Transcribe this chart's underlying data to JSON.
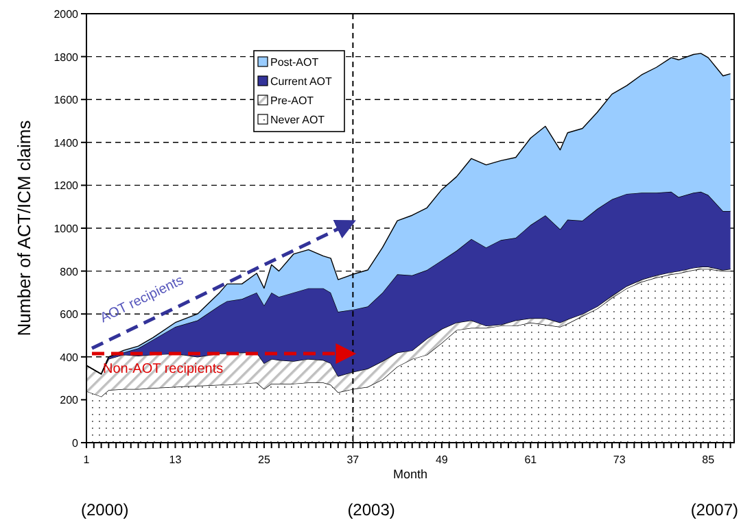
{
  "chart_data": {
    "type": "area",
    "stacked": true,
    "ylabel": "Number of ACT/ICM claims",
    "xlabel": "Month",
    "x": [
      1,
      3,
      4,
      6,
      8,
      10,
      13,
      16,
      19,
      20,
      22,
      24,
      25,
      26,
      27,
      29,
      31,
      33,
      34,
      35,
      37,
      39,
      41,
      43,
      45,
      47,
      49,
      51,
      53,
      55,
      57,
      59,
      61,
      63,
      65,
      66,
      68,
      70,
      72,
      74,
      76,
      78,
      80,
      81,
      83,
      84,
      85,
      87,
      88
    ],
    "series": [
      {
        "name": "Never AOT",
        "color": "#ffffff",
        "values": [
          240,
          215,
          245,
          250,
          250,
          255,
          260,
          265,
          270,
          270,
          275,
          280,
          250,
          275,
          275,
          275,
          280,
          280,
          270,
          235,
          250,
          260,
          295,
          355,
          390,
          410,
          465,
          525,
          535,
          535,
          545,
          545,
          560,
          550,
          540,
          555,
          590,
          625,
          675,
          720,
          750,
          770,
          785,
          790,
          805,
          810,
          810,
          800,
          800
        ]
      },
      {
        "name": "Pre-AOT",
        "color": "#c0c0c0",
        "values": [
          120,
          105,
          145,
          160,
          155,
          155,
          155,
          135,
          145,
          145,
          145,
          140,
          120,
          115,
          110,
          105,
          110,
          105,
          100,
          75,
          80,
          85,
          85,
          65,
          40,
          75,
          65,
          35,
          35,
          10,
          5,
          25,
          20,
          30,
          20,
          20,
          10,
          10,
          10,
          10,
          10,
          10,
          10,
          10,
          10,
          10,
          10,
          5,
          10
        ]
      },
      {
        "name": "Current AOT",
        "color": "#333399",
        "values": [
          0,
          0,
          10,
          10,
          35,
          70,
          125,
          170,
          225,
          245,
          250,
          280,
          270,
          310,
          295,
          320,
          330,
          335,
          330,
          300,
          290,
          290,
          320,
          365,
          350,
          320,
          320,
          335,
          380,
          365,
          395,
          385,
          435,
          480,
          435,
          465,
          435,
          455,
          450,
          430,
          405,
          385,
          375,
          345,
          350,
          350,
          335,
          275,
          270
        ]
      },
      {
        "name": "Post-AOT",
        "color": "#99ccff",
        "values": [
          0,
          0,
          0,
          10,
          10,
          10,
          20,
          30,
          60,
          80,
          70,
          90,
          80,
          130,
          120,
          180,
          180,
          150,
          160,
          150,
          165,
          170,
          210,
          250,
          280,
          290,
          330,
          345,
          375,
          385,
          370,
          375,
          405,
          415,
          370,
          405,
          430,
          450,
          490,
          505,
          550,
          585,
          625,
          640,
          645,
          645,
          640,
          630,
          640
        ]
      }
    ],
    "xlim": [
      1,
      88.5
    ],
    "xticks": [
      1,
      {
        "value": 2,
        "label": null
      },
      {
        "value": 3,
        "label": null
      },
      {
        "value": 4,
        "label": null
      },
      {
        "value": 5,
        "label": null
      },
      {
        "value": 6,
        "label": null
      },
      {
        "value": 7,
        "label": null
      },
      {
        "value": 8,
        "label": null
      },
      {
        "value": 9,
        "label": null
      },
      {
        "value": 10,
        "label": null
      },
      {
        "value": 11,
        "label": null
      },
      {
        "value": 12,
        "label": null
      },
      13,
      {
        "value": 14,
        "label": null
      },
      {
        "value": 15,
        "label": null
      },
      {
        "value": 16,
        "label": null
      },
      {
        "value": 17,
        "label": null
      },
      {
        "value": 18,
        "label": null
      },
      {
        "value": 19,
        "label": null
      },
      {
        "value": 20,
        "label": null
      },
      {
        "value": 21,
        "label": null
      },
      {
        "value": 22,
        "label": null
      },
      {
        "value": 23,
        "label": null
      },
      {
        "value": 24,
        "label": null
      },
      25,
      {
        "value": 26,
        "label": null
      },
      {
        "value": 27,
        "label": null
      },
      {
        "value": 28,
        "label": null
      },
      {
        "value": 29,
        "label": null
      },
      {
        "value": 30,
        "label": null
      },
      {
        "value": 31,
        "label": null
      },
      {
        "value": 32,
        "label": null
      },
      {
        "value": 33,
        "label": null
      },
      {
        "value": 34,
        "label": null
      },
      {
        "value": 35,
        "label": null
      },
      {
        "value": 36,
        "label": null
      },
      37,
      {
        "value": 38,
        "label": null
      },
      {
        "value": 39,
        "label": null
      },
      {
        "value": 40,
        "label": null
      },
      {
        "value": 41,
        "label": null
      },
      {
        "value": 42,
        "label": null
      },
      {
        "value": 43,
        "label": null
      },
      {
        "value": 44,
        "label": null
      },
      {
        "value": 45,
        "label": null
      },
      {
        "value": 46,
        "label": null
      },
      {
        "value": 47,
        "label": null
      },
      {
        "value": 48,
        "label": null
      },
      49,
      {
        "value": 50,
        "label": null
      },
      {
        "value": 51,
        "label": null
      },
      {
        "value": 52,
        "label": null
      },
      {
        "value": 53,
        "label": null
      },
      {
        "value": 54,
        "label": null
      },
      {
        "value": 55,
        "label": null
      },
      {
        "value": 56,
        "label": null
      },
      {
        "value": 57,
        "label": null
      },
      {
        "value": 58,
        "label": null
      },
      {
        "value": 59,
        "label": null
      },
      {
        "value": 60,
        "label": null
      },
      61,
      {
        "value": 62,
        "label": null
      },
      {
        "value": 63,
        "label": null
      },
      {
        "value": 64,
        "label": null
      },
      {
        "value": 65,
        "label": null
      },
      {
        "value": 66,
        "label": null
      },
      {
        "value": 67,
        "label": null
      },
      {
        "value": 68,
        "label": null
      },
      {
        "value": 69,
        "label": null
      },
      {
        "value": 70,
        "label": null
      },
      {
        "value": 71,
        "label": null
      },
      {
        "value": 72,
        "label": null
      },
      73,
      {
        "value": 74,
        "label": null
      },
      {
        "value": 75,
        "label": null
      },
      {
        "value": 76,
        "label": null
      },
      {
        "value": 77,
        "label": null
      },
      {
        "value": 78,
        "label": null
      },
      {
        "value": 79,
        "label": null
      },
      {
        "value": 80,
        "label": null
      },
      {
        "value": 81,
        "label": null
      },
      {
        "value": 82,
        "label": null
      },
      {
        "value": 83,
        "label": null
      },
      {
        "value": 84,
        "label": null
      },
      85,
      {
        "value": 86,
        "label": null
      },
      {
        "value": 87,
        "label": null
      },
      {
        "value": 88,
        "label": null
      }
    ],
    "ylim": [
      0,
      2000
    ],
    "yticks": [
      0,
      200,
      400,
      600,
      800,
      1000,
      1200,
      1400,
      1600,
      1800,
      2000
    ],
    "grid": "y",
    "legend": "top left",
    "ref_lines": [
      {
        "axis": "x",
        "value": 37,
        "color": "#000000",
        "line_style": "dashed"
      }
    ],
    "annotations": [
      "AOT recipients",
      "Non-AOT recipients",
      "(2000)",
      "(2003)",
      "(2007)"
    ]
  }
}
